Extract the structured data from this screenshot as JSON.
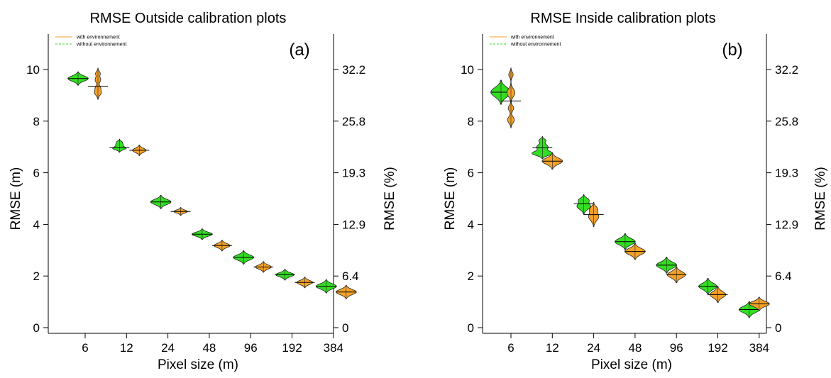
{
  "colors": {
    "with_environnement": "#F4A12A",
    "without_environnement": "#33DD22",
    "outline": "#222222",
    "axis": "#000000",
    "mean_line": "#000000"
  },
  "chart_data": [
    {
      "type": "violin",
      "title": "RMSE Outside calibration plots",
      "panel_label": "(a)",
      "xlabel": "Pixel size (m)",
      "ylabel": "RMSE (m)",
      "y2label": "RMSE (%)",
      "categories": [
        "6",
        "12",
        "24",
        "48",
        "96",
        "192",
        "384"
      ],
      "ylim": [
        0,
        10
      ],
      "yticks": [
        "0",
        "2",
        "4",
        "6",
        "8",
        "10"
      ],
      "y2ticks": [
        "0",
        "6.4",
        "12.9",
        "19.3",
        "25.8",
        "32.2"
      ],
      "legend": [
        "with environnement",
        "without environnement"
      ],
      "legend_position": "top-left",
      "series": [
        {
          "name": "without environnement",
          "violins": [
            {
              "mean": 9.65,
              "bulges": [
                [
                  9.65,
                  0.1,
                  0.9
                ]
              ]
            },
            {
              "mean": 6.97,
              "bulges": [
                [
                  6.95,
                  0.06,
                  0.6
                ],
                [
                  7.1,
                  0.05,
                  0.3
                ],
                [
                  7.2,
                  0.04,
                  0.2
                ]
              ]
            },
            {
              "mean": 4.87,
              "bulges": [
                [
                  4.87,
                  0.1,
                  0.9
                ]
              ]
            },
            {
              "mean": 3.62,
              "bulges": [
                [
                  3.62,
                  0.08,
                  0.9
                ]
              ]
            },
            {
              "mean": 2.72,
              "bulges": [
                [
                  2.72,
                  0.1,
                  0.9
                ]
              ]
            },
            {
              "mean": 2.05,
              "bulges": [
                [
                  2.05,
                  0.08,
                  0.8
                ]
              ]
            },
            {
              "mean": 1.6,
              "bulges": [
                [
                  1.6,
                  0.1,
                  0.9
                ]
              ]
            }
          ]
        },
        {
          "name": "with environnement",
          "violins": [
            {
              "mean": 9.35,
              "bulges": [
                [
                  9.1,
                  0.1,
                  0.3
                ],
                [
                  9.3,
                  0.08,
                  0.2
                ],
                [
                  9.6,
                  0.1,
                  0.25
                ],
                [
                  9.85,
                  0.08,
                  0.2
                ]
              ]
            },
            {
              "mean": 6.87,
              "bulges": [
                [
                  6.87,
                  0.08,
                  0.6
                ]
              ]
            },
            {
              "mean": 4.5,
              "bulges": [
                [
                  4.5,
                  0.06,
                  0.6
                ]
              ]
            },
            {
              "mean": 3.18,
              "bulges": [
                [
                  3.18,
                  0.08,
                  0.7
                ]
              ]
            },
            {
              "mean": 2.35,
              "bulges": [
                [
                  2.35,
                  0.08,
                  0.7
                ]
              ]
            },
            {
              "mean": 1.75,
              "bulges": [
                [
                  1.75,
                  0.08,
                  0.7
                ]
              ]
            },
            {
              "mean": 1.38,
              "bulges": [
                [
                  1.38,
                  0.1,
                  0.9
                ]
              ]
            }
          ]
        }
      ]
    },
    {
      "type": "violin",
      "title": "RMSE Inside calibration plots",
      "panel_label": "(b)",
      "xlabel": "Pixel size (m)",
      "ylabel": "RMSE (m)",
      "y2label": "RMSE (%)",
      "categories": [
        "6",
        "12",
        "24",
        "48",
        "96",
        "192",
        "384"
      ],
      "ylim": [
        0,
        10
      ],
      "yticks": [
        "0",
        "2",
        "4",
        "6",
        "8",
        "10"
      ],
      "y2ticks": [
        "0",
        "6.4",
        "12.9",
        "19.3",
        "25.8",
        "32.2"
      ],
      "legend": [
        "with environnement",
        "without environnement"
      ],
      "legend_position": "top-left",
      "series": [
        {
          "name": "without environnement",
          "violins": [
            {
              "mean": 9.12,
              "bulges": [
                [
                  9.12,
                  0.18,
                  0.9
                ]
              ]
            },
            {
              "mean": 6.97,
              "bulges": [
                [
                  6.75,
                  0.08,
                  0.9
                ],
                [
                  7.0,
                  0.1,
                  0.5
                ],
                [
                  7.25,
                  0.06,
                  0.3
                ]
              ]
            },
            {
              "mean": 4.8,
              "bulges": [
                [
                  4.7,
                  0.12,
                  0.6
                ],
                [
                  4.95,
                  0.08,
                  0.4
                ]
              ]
            },
            {
              "mean": 3.33,
              "bulges": [
                [
                  3.33,
                  0.12,
                  0.9
                ]
              ]
            },
            {
              "mean": 2.42,
              "bulges": [
                [
                  2.42,
                  0.12,
                  0.9
                ]
              ]
            },
            {
              "mean": 1.6,
              "bulges": [
                [
                  1.6,
                  0.12,
                  0.8
                ]
              ]
            },
            {
              "mean": 0.7,
              "bulges": [
                [
                  0.7,
                  0.12,
                  0.9
                ]
              ]
            }
          ]
        },
        {
          "name": "with environnement",
          "violins": [
            {
              "mean": 8.78,
              "bulges": [
                [
                  8.05,
                  0.12,
                  0.3
                ],
                [
                  8.5,
                  0.1,
                  0.25
                ],
                [
                  9.1,
                  0.15,
                  0.35
                ],
                [
                  9.8,
                  0.1,
                  0.2
                ]
              ]
            },
            {
              "mean": 6.45,
              "bulges": [
                [
                  6.45,
                  0.12,
                  0.9
                ]
              ]
            },
            {
              "mean": 4.38,
              "bulges": [
                [
                  4.3,
                  0.15,
                  0.45
                ],
                [
                  4.6,
                  0.1,
                  0.3
                ]
              ]
            },
            {
              "mean": 2.95,
              "bulges": [
                [
                  2.95,
                  0.12,
                  0.9
                ]
              ]
            },
            {
              "mean": 2.05,
              "bulges": [
                [
                  2.05,
                  0.12,
                  0.8
                ]
              ]
            },
            {
              "mean": 1.28,
              "bulges": [
                [
                  1.28,
                  0.12,
                  0.7
                ]
              ]
            },
            {
              "mean": 0.92,
              "bulges": [
                [
                  0.92,
                  0.1,
                  0.9
                ]
              ]
            }
          ]
        }
      ]
    }
  ]
}
